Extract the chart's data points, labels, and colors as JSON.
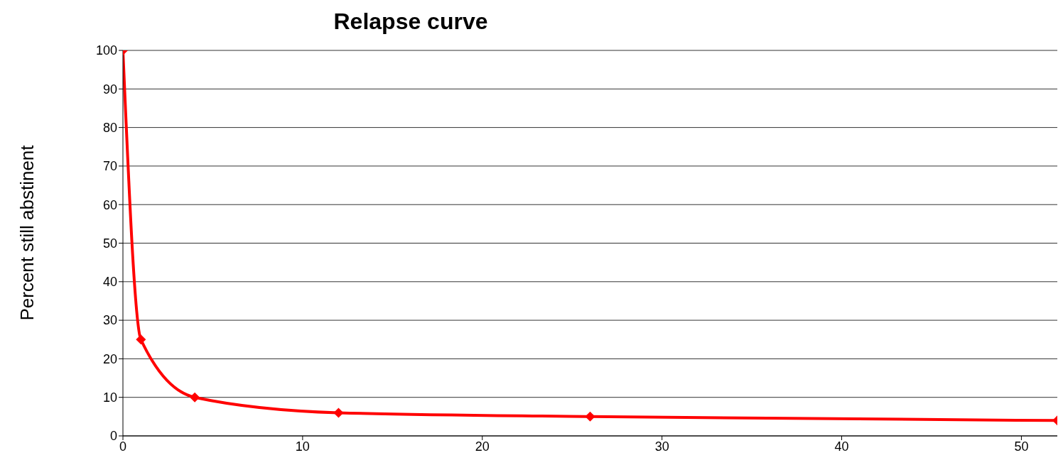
{
  "chart_data": {
    "type": "line",
    "title": "Relapse curve",
    "ylabel": "Percent still abstinent",
    "x": [
      0,
      1,
      4,
      12,
      26,
      52
    ],
    "series": [
      {
        "color": "#ff0000",
        "values": [
          100,
          25,
          10,
          6,
          5,
          4
        ]
      }
    ],
    "xlim": [
      0,
      52
    ],
    "xticks": [
      0,
      10,
      20,
      30,
      40,
      50
    ],
    "ylim": [
      0,
      100
    ],
    "yticks": [
      0,
      10,
      20,
      30,
      40,
      50,
      60,
      70,
      80,
      90,
      100
    ],
    "grid": "y",
    "marker": "diamond",
    "line_style": "solid",
    "legend": false
  }
}
